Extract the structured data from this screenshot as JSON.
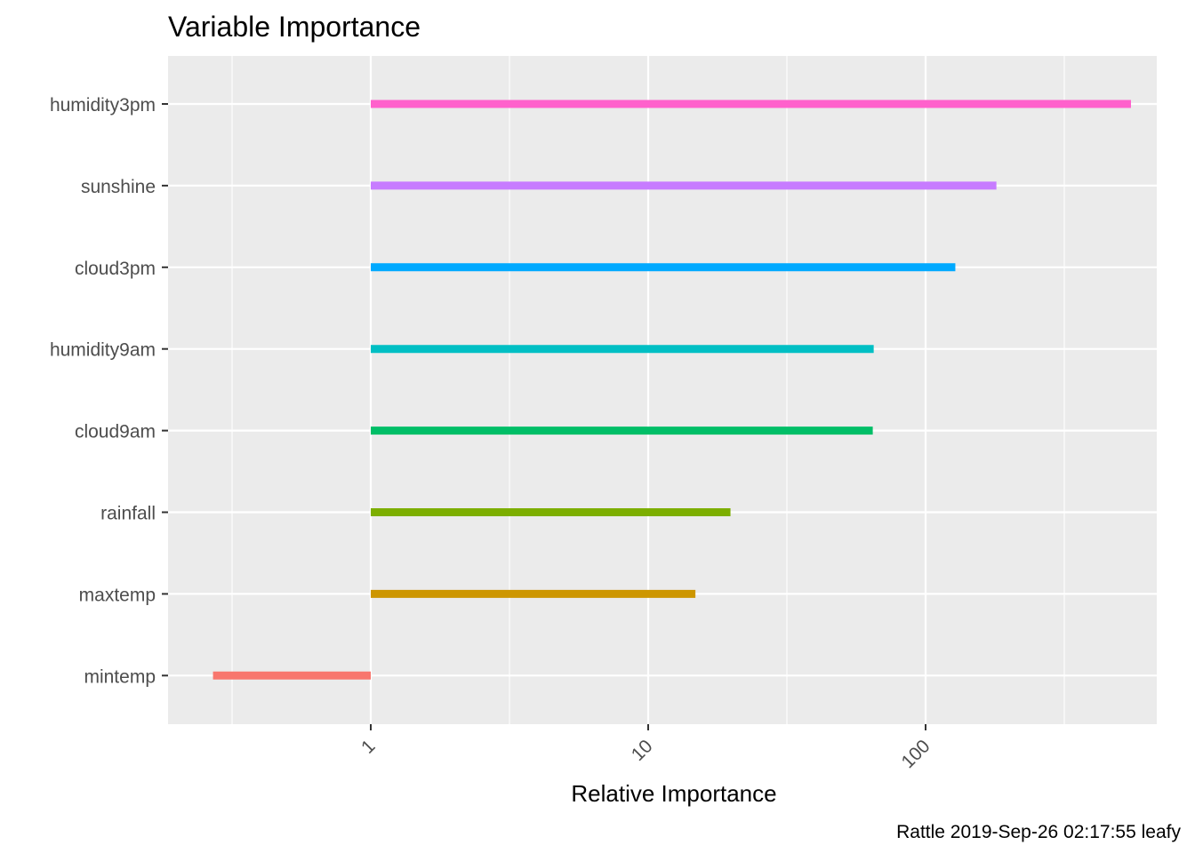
{
  "chart_data": {
    "type": "bar",
    "title": "Variable Importance",
    "xlabel": "Relative Importance",
    "ylabel": "",
    "caption": "Rattle 2019-Sep-26 02:17:55 leafy",
    "x_scale": "log10",
    "xlim": [
      0.2,
      800
    ],
    "x_ticks": [
      1,
      10,
      100
    ],
    "x_tick_labels": [
      "1",
      "10",
      "100"
    ],
    "bar_origin": 1,
    "grid": true,
    "legend": "none",
    "categories": [
      "humidity3pm",
      "sunshine",
      "cloud3pm",
      "humidity9am",
      "cloud9am",
      "rainfall",
      "maxtemp",
      "mintemp"
    ],
    "values": [
      550,
      180,
      128,
      65,
      64.5,
      19.8,
      14.8,
      0.27
    ],
    "colors": [
      "#FF61CC",
      "#C77CFF",
      "#00A9FF",
      "#00BFC4",
      "#00BE67",
      "#7CAE00",
      "#CD9600",
      "#F8766D"
    ],
    "panel_background": "#EBEBEB",
    "grid_color": "#FFFFFF"
  }
}
